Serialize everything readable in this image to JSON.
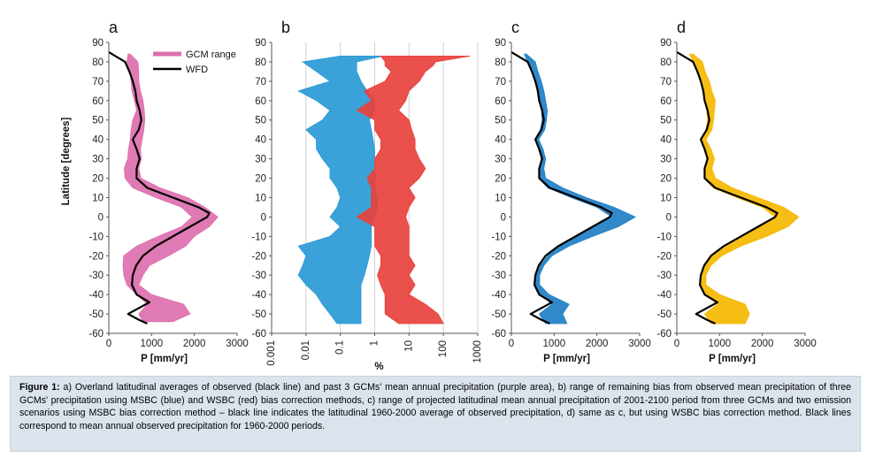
{
  "chart_data": [
    {
      "panel_label": "a",
      "type": "area",
      "xlabel": "P [mm/yr]",
      "ylabel": "Latitude [degrees]",
      "xlim": [
        0,
        3000
      ],
      "ylim": [
        -60,
        90
      ],
      "xticks": [
        0,
        1000,
        2000,
        3000
      ],
      "yticks": [
        90,
        80,
        70,
        60,
        50,
        40,
        30,
        20,
        10,
        0,
        -10,
        -20,
        -30,
        -40,
        -50,
        -60
      ],
      "legend_position": "top-right",
      "series": [
        {
          "name": "GCM range",
          "kind": "range",
          "color": "#dd6fae",
          "lat": [
            84,
            80,
            75,
            70,
            65,
            60,
            55,
            50,
            45,
            40,
            35,
            30,
            25,
            20,
            15,
            10,
            5,
            0,
            -5,
            -10,
            -15,
            -20,
            -25,
            -30,
            -35,
            -40,
            -45,
            -50,
            -54
          ],
          "low": [
            450,
            420,
            500,
            520,
            540,
            600,
            650,
            560,
            520,
            500,
            460,
            440,
            360,
            380,
            560,
            1100,
            1700,
            1950,
            1700,
            1150,
            650,
            350,
            330,
            350,
            420,
            650,
            900,
            700,
            800
          ],
          "high": [
            500,
            680,
            700,
            700,
            740,
            800,
            830,
            840,
            820,
            780,
            740,
            760,
            700,
            750,
            1200,
            1850,
            2250,
            2550,
            2350,
            2000,
            1800,
            1400,
            950,
            800,
            700,
            1000,
            1750,
            1900,
            1500
          ]
        },
        {
          "name": "WFD",
          "kind": "line",
          "color": "#000000",
          "lat": [
            85,
            80,
            75,
            70,
            65,
            60,
            55,
            50,
            45,
            40,
            35,
            30,
            25,
            20,
            15,
            10,
            5,
            2,
            0,
            -5,
            -10,
            -15,
            -20,
            -25,
            -30,
            -35,
            -40,
            -44,
            -47,
            -50,
            -53,
            -55
          ],
          "x": [
            0,
            380,
            480,
            560,
            620,
            650,
            720,
            760,
            700,
            560,
            650,
            720,
            650,
            650,
            900,
            1500,
            2100,
            2350,
            2300,
            1900,
            1500,
            1100,
            800,
            640,
            560,
            540,
            650,
            950,
            700,
            450,
            700,
            900
          ]
        }
      ]
    },
    {
      "panel_label": "b",
      "type": "area",
      "xlabel": "%",
      "xscale": "log",
      "xlim": [
        0.001,
        1000
      ],
      "ylim": [
        -60,
        90
      ],
      "xticks": [
        0.001,
        0.01,
        0.1,
        1,
        10,
        100,
        1000
      ],
      "xtick_labels": [
        "0.001",
        "0.01",
        "0.1",
        "1",
        "10",
        "100",
        "1000"
      ],
      "yticks": [
        90,
        80,
        70,
        60,
        50,
        40,
        30,
        20,
        10,
        0,
        -10,
        -20,
        -30,
        -40,
        -50,
        -60
      ],
      "grid": true,
      "series": [
        {
          "name": "MSBC",
          "kind": "range",
          "color": "#2a9ad6",
          "lat": [
            83,
            80,
            75,
            70,
            65,
            60,
            55,
            50,
            45,
            40,
            35,
            30,
            25,
            20,
            15,
            10,
            5,
            0,
            -5,
            -10,
            -15,
            -20,
            -25,
            -30,
            -35,
            -40,
            -45,
            -50,
            -55
          ],
          "low": [
            0.1,
            0.008,
            0.02,
            0.05,
            0.006,
            0.02,
            0.05,
            0.03,
            0.01,
            0.02,
            0.02,
            0.03,
            0.05,
            0.05,
            0.08,
            0.1,
            0.08,
            0.05,
            0.1,
            0.05,
            0.006,
            0.01,
            0.008,
            0.006,
            0.01,
            0.02,
            0.03,
            0.05,
            0.08
          ],
          "high": [
            1.8,
            0.3,
            0.3,
            0.4,
            0.6,
            1.0,
            1.0,
            0.7,
            0.8,
            0.9,
            1.0,
            1.0,
            1.0,
            1.1,
            1.0,
            1.2,
            1.2,
            1.0,
            0.8,
            0.8,
            0.8,
            0.7,
            0.6,
            0.5,
            0.4,
            0.4,
            0.4,
            0.4,
            0.4
          ]
        },
        {
          "name": "WSBC",
          "kind": "range",
          "color": "#e8413d",
          "lat": [
            83,
            80,
            78,
            75,
            70,
            65,
            60,
            55,
            50,
            45,
            40,
            35,
            30,
            25,
            20,
            15,
            10,
            5,
            0,
            -5,
            -10,
            -15,
            -20,
            -25,
            -30,
            -35,
            -40,
            -45,
            -50,
            -55
          ],
          "low": [
            1.5,
            2,
            2,
            3,
            2,
            0.5,
            0.8,
            0.3,
            1.0,
            1.0,
            1.5,
            1.5,
            1.0,
            1.0,
            0.6,
            0.8,
            0.8,
            0.8,
            0.3,
            1.0,
            1.0,
            1.0,
            1.5,
            1.5,
            1.2,
            1.5,
            2,
            2,
            2,
            5
          ],
          "high": [
            600,
            60,
            50,
            30,
            20,
            10,
            8,
            5,
            10,
            12,
            15,
            15,
            20,
            30,
            20,
            10,
            15,
            10,
            8,
            10,
            10,
            10,
            10,
            15,
            10,
            15,
            10,
            30,
            70,
            100
          ]
        }
      ]
    },
    {
      "panel_label": "c",
      "type": "area",
      "xlabel": "P [mm/yr]",
      "xlim": [
        0,
        3000
      ],
      "ylim": [
        -60,
        90
      ],
      "xticks": [
        0,
        1000,
        2000,
        3000
      ],
      "yticks": [
        90,
        80,
        70,
        60,
        50,
        40,
        30,
        20,
        10,
        0,
        -10,
        -20,
        -30,
        -40,
        -50,
        -60
      ],
      "series": [
        {
          "kind": "range",
          "color": "#1f7fc4",
          "lat": [
            84,
            80,
            75,
            70,
            65,
            60,
            55,
            50,
            45,
            40,
            35,
            30,
            25,
            20,
            15,
            10,
            5,
            0,
            -5,
            -10,
            -15,
            -20,
            -25,
            -30,
            -35,
            -40,
            -45,
            -50,
            -55
          ],
          "low": [
            300,
            380,
            480,
            560,
            600,
            640,
            700,
            720,
            680,
            560,
            640,
            700,
            640,
            640,
            850,
            1400,
            2000,
            2350,
            1950,
            1550,
            1150,
            850,
            680,
            580,
            560,
            680,
            950,
            650,
            800
          ],
          "high": [
            350,
            560,
            620,
            700,
            760,
            800,
            840,
            820,
            780,
            640,
            740,
            800,
            760,
            800,
            1200,
            1750,
            2400,
            2900,
            2500,
            1900,
            1350,
            950,
            760,
            660,
            660,
            880,
            1350,
            1200,
            1300
          ]
        },
        {
          "kind": "line",
          "color": "#000000",
          "lat": [
            85,
            80,
            75,
            70,
            65,
            60,
            55,
            50,
            45,
            40,
            35,
            30,
            25,
            20,
            15,
            10,
            5,
            2,
            0,
            -5,
            -10,
            -15,
            -20,
            -25,
            -30,
            -35,
            -40,
            -44,
            -47,
            -50,
            -53,
            -55
          ],
          "x": [
            0,
            380,
            480,
            560,
            620,
            650,
            720,
            760,
            700,
            560,
            650,
            720,
            650,
            650,
            900,
            1500,
            2100,
            2350,
            2300,
            1900,
            1500,
            1100,
            800,
            640,
            560,
            540,
            650,
            950,
            700,
            450,
            700,
            900
          ]
        }
      ]
    },
    {
      "panel_label": "d",
      "type": "area",
      "xlabel": "P [mm/yr]",
      "xlim": [
        0,
        3000
      ],
      "ylim": [
        -60,
        90
      ],
      "xticks": [
        0,
        1000,
        2000,
        3000
      ],
      "yticks": [
        90,
        80,
        70,
        60,
        50,
        40,
        30,
        20,
        10,
        0,
        -10,
        -20,
        -30,
        -40,
        -50,
        -60
      ],
      "series": [
        {
          "kind": "range",
          "color": "#f5b800",
          "lat": [
            84,
            80,
            75,
            70,
            65,
            60,
            55,
            50,
            45,
            40,
            35,
            30,
            25,
            20,
            15,
            10,
            5,
            0,
            -5,
            -10,
            -15,
            -20,
            -25,
            -30,
            -35,
            -40,
            -45,
            -50,
            -55
          ],
          "low": [
            300,
            380,
            480,
            560,
            600,
            640,
            700,
            720,
            680,
            560,
            640,
            700,
            640,
            640,
            850,
            1400,
            2000,
            2300,
            1950,
            1500,
            1100,
            800,
            640,
            560,
            540,
            650,
            950,
            650,
            800
          ],
          "high": [
            380,
            600,
            660,
            760,
            820,
            900,
            880,
            860,
            820,
            680,
            800,
            880,
            820,
            900,
            1300,
            1900,
            2500,
            2850,
            2600,
            2100,
            1500,
            1050,
            800,
            680,
            680,
            1000,
            1600,
            1700,
            1600
          ]
        },
        {
          "kind": "line",
          "color": "#000000",
          "lat": [
            85,
            80,
            75,
            70,
            65,
            60,
            55,
            50,
            45,
            40,
            35,
            30,
            25,
            20,
            15,
            10,
            5,
            2,
            0,
            -5,
            -10,
            -15,
            -20,
            -25,
            -30,
            -35,
            -40,
            -44,
            -47,
            -50,
            -53,
            -55
          ],
          "x": [
            0,
            380,
            480,
            560,
            620,
            650,
            720,
            760,
            700,
            560,
            650,
            720,
            650,
            650,
            900,
            1500,
            2100,
            2350,
            2300,
            1900,
            1500,
            1100,
            800,
            640,
            560,
            540,
            650,
            950,
            700,
            450,
            700,
            900
          ]
        }
      ]
    }
  ],
  "caption": {
    "label": "Figure 1:",
    "text": " a) Overland latitudinal averages of observed (black line) and past 3 GCMs' mean annual precipitation (purple area), b) range of remaining bias from observed mean precipitation of three GCMs' precipitation using MSBC (blue) and WSBC (red) bias correction methods, c) range of projected latitudinal mean annual precipitation of 2001-2100 period from three GCMs and two emission scenarios using MSBC bias correction method – black line indicates the latitudinal 1960-2000 average of observed precipitation, d) same as c, but using WSBC bias correction method.  Black lines correspond to mean annual observed precipitation for 1960-2000 periods."
  }
}
